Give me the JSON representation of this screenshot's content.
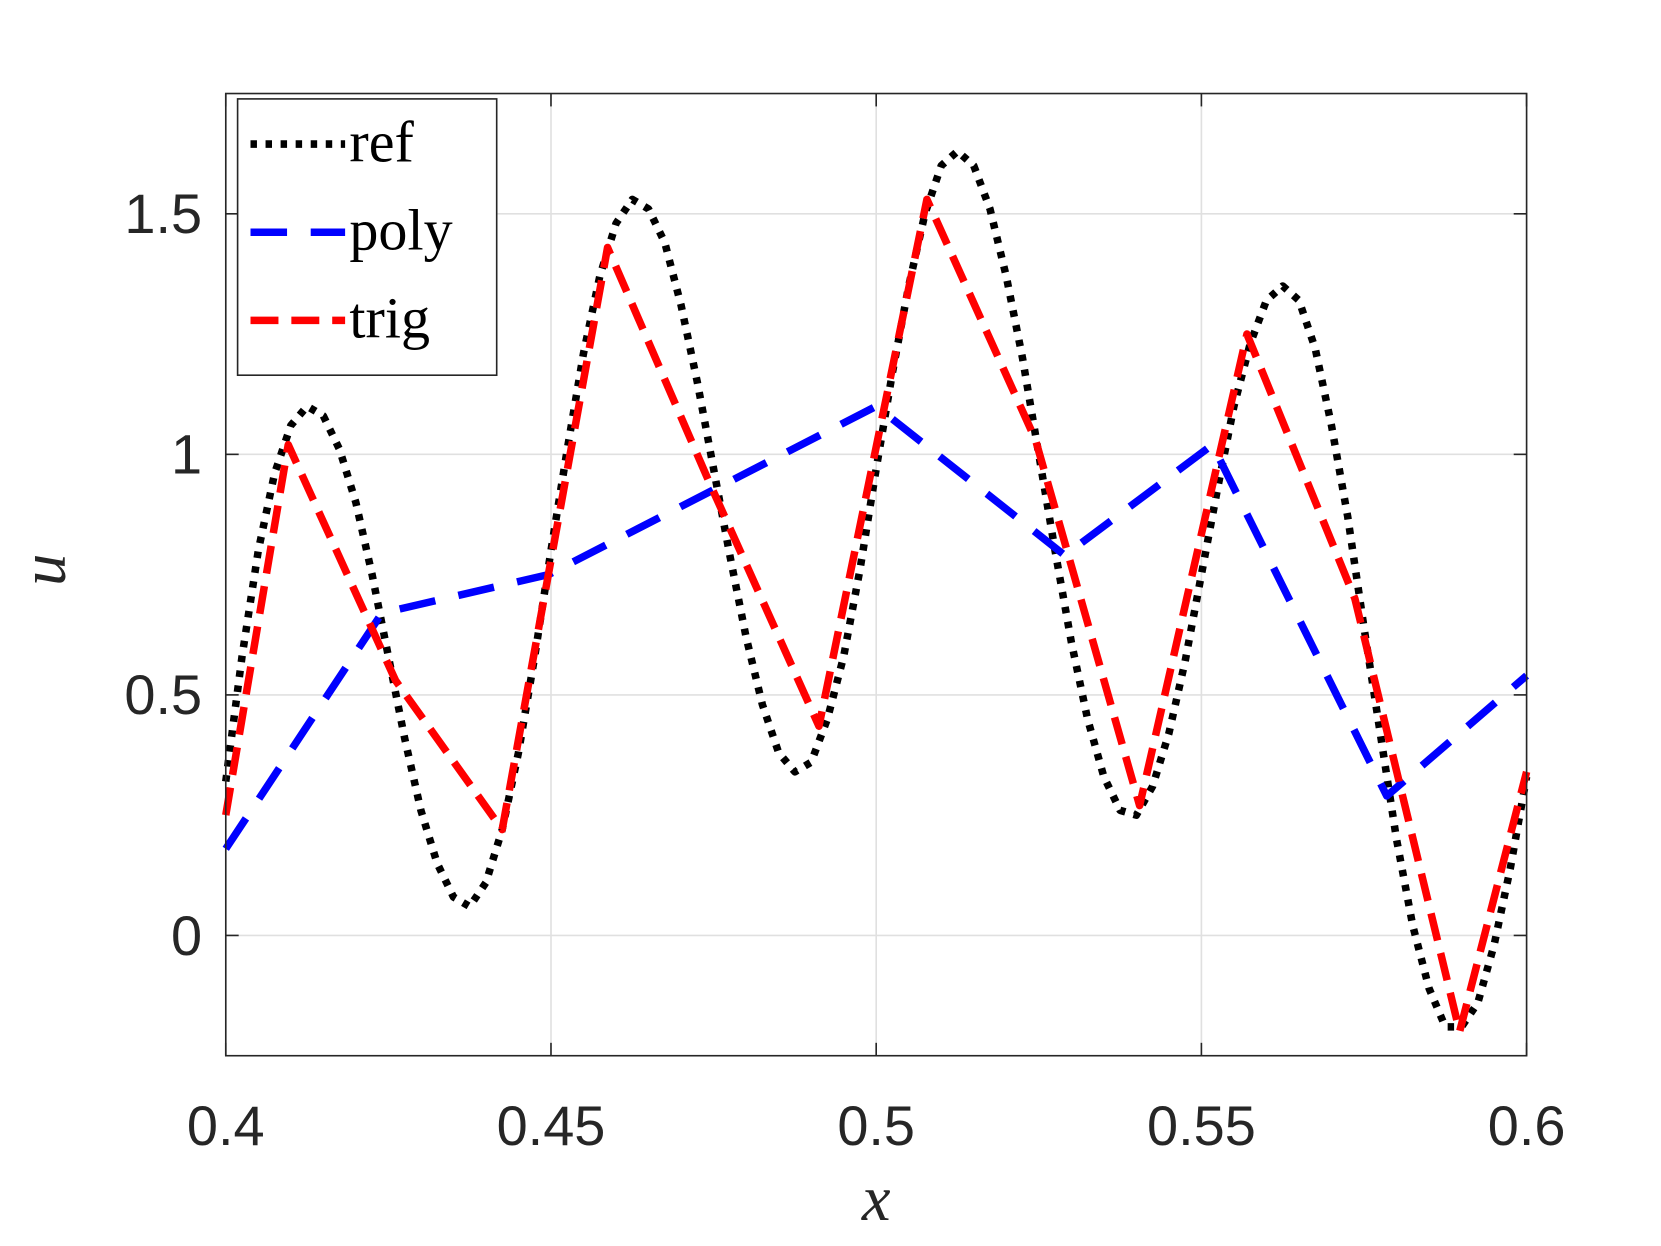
{
  "chart_data": {
    "type": "line",
    "xlabel": "x",
    "ylabel": "u",
    "xlim": [
      0.4,
      0.6
    ],
    "ylim": [
      -0.25,
      1.75
    ],
    "xticks": [
      0.4,
      0.45,
      0.5,
      0.55,
      0.6
    ],
    "yticks": [
      0,
      0.5,
      1,
      1.5
    ],
    "grid": true,
    "legend": "upper left",
    "series": [
      {
        "name": "ref",
        "color": "#000000",
        "linestyle": "dotted",
        "x": [
          0.4,
          0.4025,
          0.405,
          0.4075,
          0.41,
          0.4125,
          0.415,
          0.4175,
          0.42,
          0.4225,
          0.425,
          0.4275,
          0.43,
          0.4325,
          0.435,
          0.4375,
          0.44,
          0.4425,
          0.445,
          0.4475,
          0.45,
          0.4525,
          0.455,
          0.4575,
          0.46,
          0.4625,
          0.465,
          0.4675,
          0.47,
          0.4725,
          0.475,
          0.4775,
          0.48,
          0.4825,
          0.485,
          0.4875,
          0.49,
          0.4925,
          0.495,
          0.4975,
          0.5,
          0.5025,
          0.505,
          0.5075,
          0.51,
          0.5125,
          0.515,
          0.5175,
          0.52,
          0.5225,
          0.525,
          0.5275,
          0.53,
          0.5325,
          0.535,
          0.5375,
          0.54,
          0.5425,
          0.545,
          0.5475,
          0.55,
          0.5525,
          0.555,
          0.5575,
          0.56,
          0.5625,
          0.565,
          0.5675,
          0.57,
          0.5725,
          0.575,
          0.5775,
          0.58,
          0.5825,
          0.585,
          0.5875,
          0.59,
          0.5925,
          0.595,
          0.5975,
          0.6
        ],
        "values": [
          0.32,
          0.58,
          0.8,
          0.96,
          1.06,
          1.1,
          1.08,
          1.01,
          0.9,
          0.75,
          0.58,
          0.41,
          0.26,
          0.15,
          0.08,
          0.06,
          0.11,
          0.22,
          0.38,
          0.58,
          0.8,
          1.01,
          1.21,
          1.37,
          1.48,
          1.53,
          1.51,
          1.44,
          1.31,
          1.15,
          0.97,
          0.79,
          0.62,
          0.48,
          0.38,
          0.34,
          0.36,
          0.45,
          0.58,
          0.76,
          0.97,
          1.17,
          1.35,
          1.5,
          1.6,
          1.63,
          1.6,
          1.51,
          1.37,
          1.2,
          1.0,
          0.8,
          0.61,
          0.45,
          0.33,
          0.26,
          0.25,
          0.31,
          0.42,
          0.57,
          0.75,
          0.93,
          1.1,
          1.23,
          1.32,
          1.35,
          1.32,
          1.22,
          1.06,
          0.87,
          0.64,
          0.42,
          0.2,
          0.02,
          -0.11,
          -0.19,
          -0.19,
          -0.14,
          -0.02,
          0.14,
          0.33
        ]
      },
      {
        "name": "poly",
        "color": "#0000ff",
        "linestyle": "dashed",
        "x": [
          0.4,
          0.424,
          0.4496,
          0.5,
          0.529,
          0.5517,
          0.5785,
          0.6
        ],
        "values": [
          0.18,
          0.67,
          0.75,
          1.1,
          0.79,
          1.02,
          0.29,
          0.54
        ]
      },
      {
        "name": "trig",
        "color": "#ff0000",
        "linestyle": "dash-short",
        "x": [
          0.4,
          0.4096,
          0.4261,
          0.4425,
          0.4587,
          0.4744,
          0.4912,
          0.5078,
          0.5245,
          0.5405,
          0.557,
          0.5736,
          0.5897,
          0.6
        ],
        "values": [
          0.25,
          1.02,
          0.53,
          0.22,
          1.43,
          0.94,
          0.435,
          1.53,
          1.03,
          0.27,
          1.25,
          0.7,
          -0.2,
          0.34
        ]
      }
    ]
  }
}
